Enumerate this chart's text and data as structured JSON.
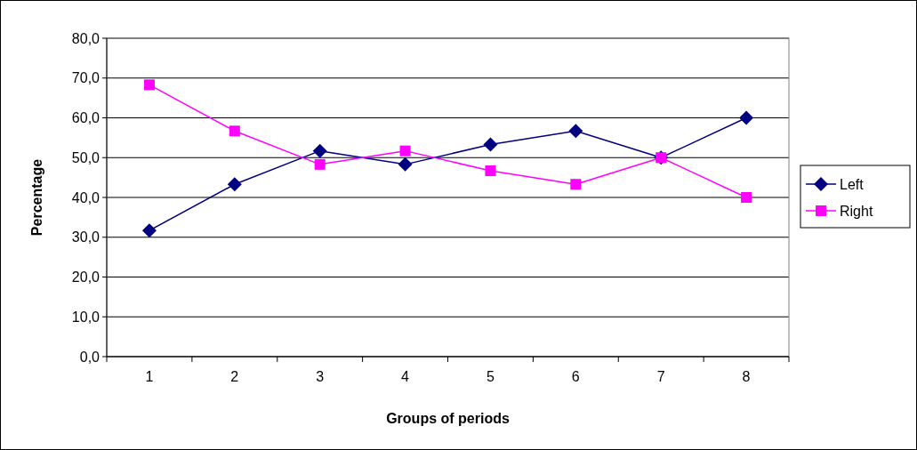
{
  "chart_data": {
    "type": "line",
    "xlabel": "Groups of periods",
    "ylabel": "Percentage",
    "categories": [
      "1",
      "2",
      "3",
      "4",
      "5",
      "6",
      "7",
      "8"
    ],
    "series": [
      {
        "name": "Left",
        "color": "#000080",
        "marker": "diamond",
        "values": [
          31.7,
          43.3,
          51.7,
          48.3,
          53.3,
          56.7,
          50.0,
          60.0
        ]
      },
      {
        "name": "Right",
        "color": "#ff00ff",
        "marker": "square",
        "values": [
          68.3,
          56.7,
          48.3,
          51.7,
          46.7,
          43.3,
          50.0,
          40.0
        ]
      }
    ],
    "ylim": [
      0,
      80
    ],
    "yticks": [
      {
        "value": 0,
        "label": "0,0"
      },
      {
        "value": 10,
        "label": "10,0"
      },
      {
        "value": 20,
        "label": "20,0"
      },
      {
        "value": 30,
        "label": "30,0"
      },
      {
        "value": 40,
        "label": "40,0"
      },
      {
        "value": 50,
        "label": "50,0"
      },
      {
        "value": 60,
        "label": "60,0"
      },
      {
        "value": 70,
        "label": "70,0"
      },
      {
        "value": 80,
        "label": "80,0"
      }
    ],
    "grid": "y",
    "legend": "right",
    "line_style": "solid"
  }
}
